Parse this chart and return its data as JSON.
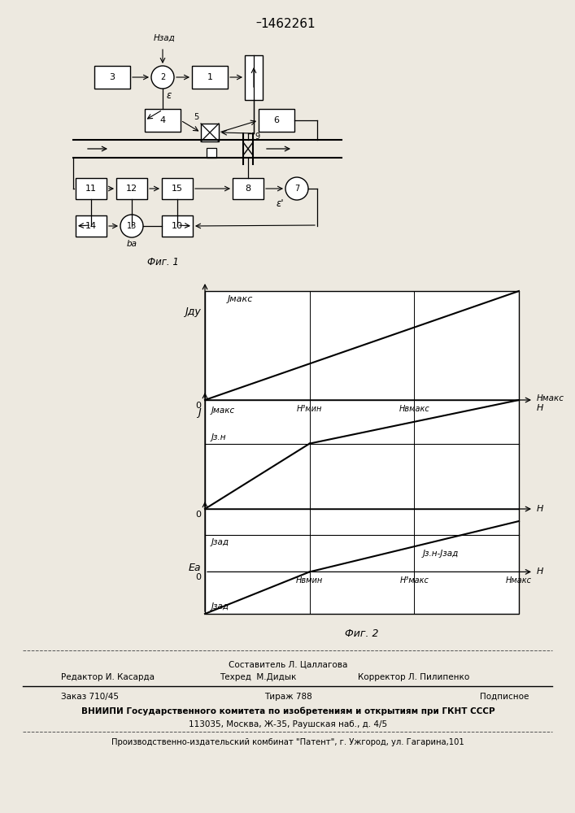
{
  "title": "1462261",
  "fig1_caption": "Фиг. 1",
  "fig2_caption": "Фиг. 2",
  "bg_color": "#f0ece4",
  "graph1_ylabel": "Jду",
  "graph1_ylabel2": "Jмакс",
  "graph1_xmax": "Hмакс",
  "graph1_H": "H",
  "graph1_tick1": "H³мин",
  "graph1_tick2": "Hвмакс",
  "graph2_ylabel": "J",
  "graph2_ymakc": "Jмакс",
  "graph2_yzn": "Jз.н",
  "graph2_H": "H",
  "graph3_ylabel": "Eа",
  "graph3_right": "Jз.н-Jзад",
  "graph3_jzad_below": "Jзад",
  "graph3_jzad_above": "Jзад",
  "graph3_H": "H",
  "graph3_tick1": "Hвмин",
  "graph3_tick2": "H³макс",
  "graph3_tick3": "Hмакс",
  "footer_col1_l1": "Редактор И. Касарда",
  "footer_col2_l1": "Составитель Л. Цаллагова",
  "footer_col2_l2": "Техред  М.Дидык",
  "footer_col3_l2": "Корректор Л. Пилипенко",
  "footer_order": "Заказ 710/45",
  "footer_tirazh": "Тираж 788",
  "footer_podp": "Подписное",
  "footer_vniip1": "ВНИИПИ Государственного комитета по изобретениям и открытиям при ГКНТ СССР",
  "footer_vniip2": "113035, Москва, Ж-35, Раушская наб., д. 4/5",
  "footer_patent": "Производственно-издательский комбинат \"Патент\", г. Ужгород, ул. Гагарина,101"
}
